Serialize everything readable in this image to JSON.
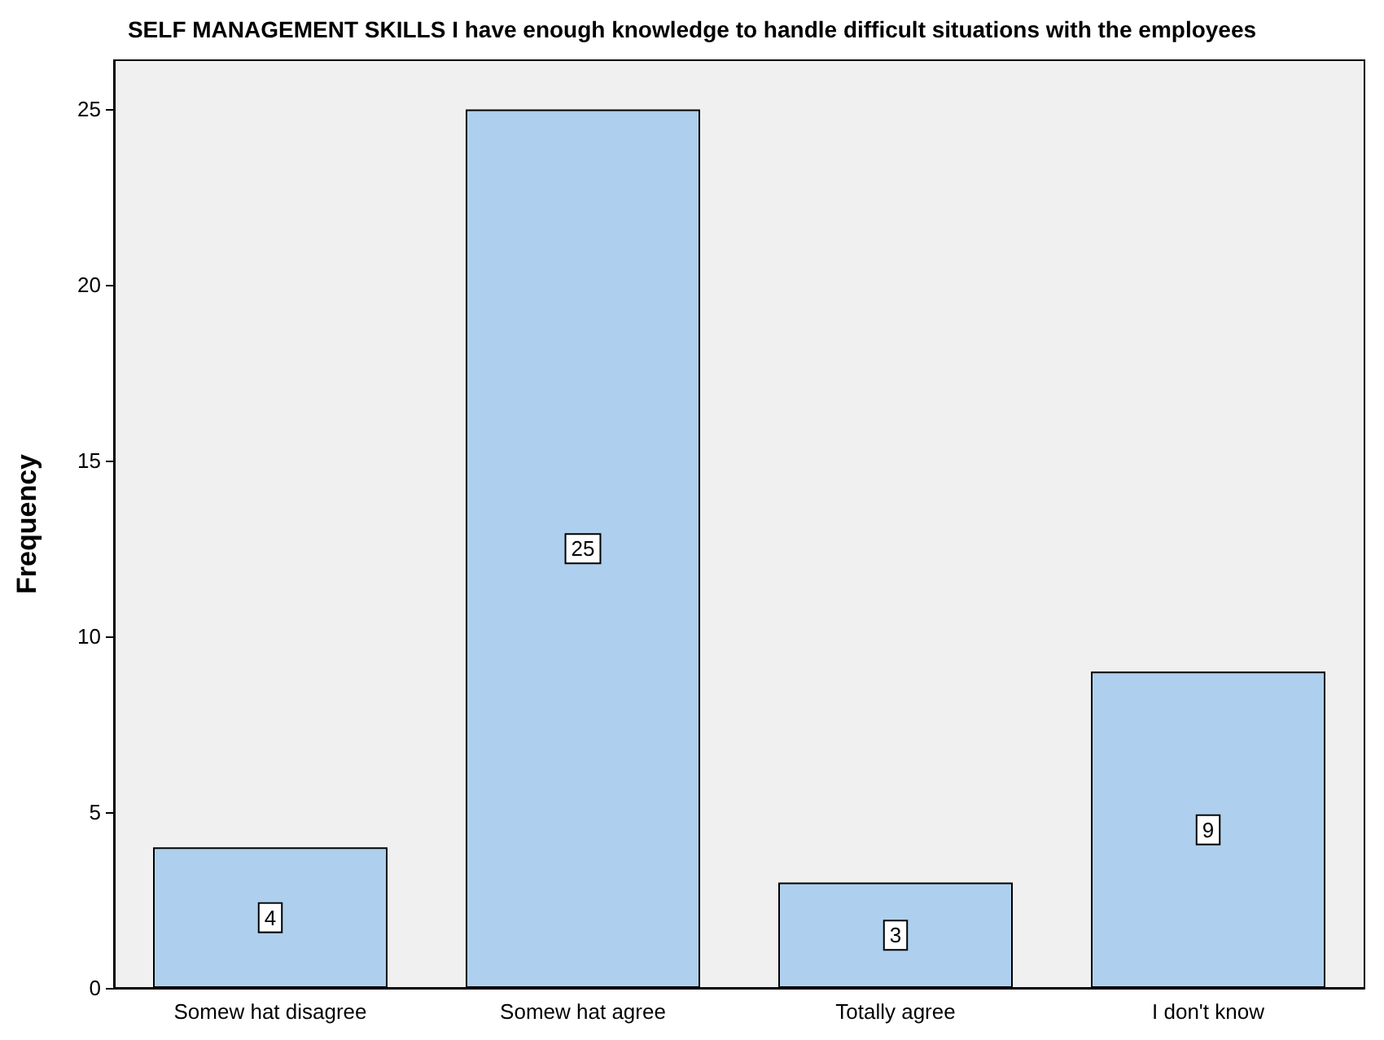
{
  "chart_data": {
    "type": "bar",
    "title": "SELF MANAGEMENT SKILLS I have enough knowledge to handle difficult situations with the employees",
    "ylabel": "Frequency",
    "categories": [
      "Somew hat disagree",
      "Somew hat agree",
      "Totally agree",
      "I don't know"
    ],
    "values": [
      4,
      25,
      3,
      9
    ],
    "color": "#aed0ee",
    "ylim": [
      0,
      26.4
    ],
    "yticks": [
      0,
      5,
      10,
      15,
      20,
      25
    ],
    "grid": false,
    "data_labels": true
  }
}
